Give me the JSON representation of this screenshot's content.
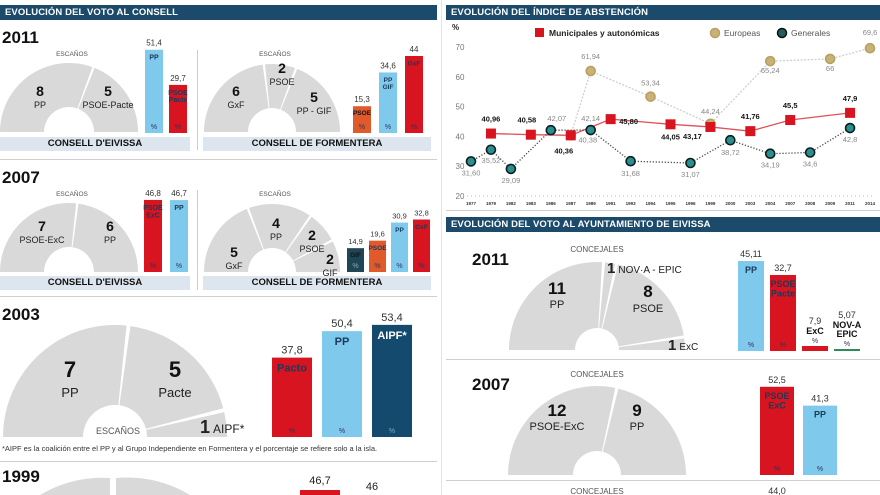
{
  "consell": {
    "title": "EVOLUCIÓN DEL VOTO AL CONSELL",
    "y2011": {
      "year": "2011",
      "eivissa": {
        "seats_label": "ESCAÑOS",
        "footer": "CONSELL D'EIVISSA",
        "seats": [
          {
            "n": "8",
            "party": "PP"
          },
          {
            "n": "5",
            "party": "PSOE-Pacte"
          }
        ],
        "bars": [
          {
            "value": "51,4",
            "num": 51.4,
            "label": "PP",
            "color": "#7fc9ec",
            "unit": "%"
          },
          {
            "value": "29,7",
            "num": 29.7,
            "label": "PSOE Pacte",
            "color": "#d7141f",
            "unit": "%"
          }
        ]
      },
      "formentera": {
        "seats_label": "ESCAÑOS",
        "footer": "CONSELL DE FORMENTERA",
        "seats": [
          {
            "n": "6",
            "party": "GxF"
          },
          {
            "n": "2",
            "party": "PSOE"
          },
          {
            "n": "5",
            "party": "PP - GIF"
          }
        ],
        "bars": [
          {
            "value": "15,3",
            "num": 15.3,
            "label": "PSOE",
            "color": "#e05a2b",
            "unit": "%"
          },
          {
            "value": "34,6",
            "num": 34.6,
            "label": "PP GIF",
            "color": "#7fc9ec",
            "unit": "%"
          },
          {
            "value": "44",
            "num": 44,
            "label": "GxF",
            "color": "#d7141f",
            "unit": "%"
          }
        ]
      }
    },
    "y2007": {
      "year": "2007",
      "eivissa": {
        "seats_label": "ESCAÑOS",
        "footer": "CONSELL D'EIVISSA",
        "seats": [
          {
            "n": "7",
            "party": "PSOE-ExC"
          },
          {
            "n": "6",
            "party": "PP"
          }
        ],
        "bars": [
          {
            "value": "46,8",
            "num": 46.8,
            "label": "PSOE ExC",
            "color": "#d7141f",
            "unit": "%"
          },
          {
            "value": "46,7",
            "num": 46.7,
            "label": "PP",
            "color": "#7fc9ec",
            "unit": "%"
          }
        ]
      },
      "formentera": {
        "seats_label": "ESCAÑOS",
        "footer": "CONSELL DE FORMENTERA",
        "seats": [
          {
            "n": "5",
            "party": "GxF"
          },
          {
            "n": "4",
            "party": "PP"
          },
          {
            "n": "2",
            "party": "PSOE"
          },
          {
            "n": "2",
            "party": "GIF"
          }
        ],
        "bars": [
          {
            "value": "14,9",
            "num": 14.9,
            "label": "GIF",
            "color": "#1f4654",
            "unit": "%"
          },
          {
            "value": "19,6",
            "num": 19.6,
            "label": "PSOE",
            "color": "#e05a2b",
            "unit": "%"
          },
          {
            "value": "30,9",
            "num": 30.9,
            "label": "PP",
            "color": "#7fc9ec",
            "unit": "%"
          },
          {
            "value": "32,8",
            "num": 32.8,
            "label": "GxF",
            "color": "#d7141f",
            "unit": "%"
          }
        ]
      }
    },
    "y2003": {
      "year": "2003",
      "seats_label": "ESCAÑOS",
      "seats": [
        {
          "n": "7",
          "party": "PP"
        },
        {
          "n": "5",
          "party": "Pacte"
        },
        {
          "n": "1",
          "party": "AIPF*"
        }
      ],
      "bars": [
        {
          "value": "37,8",
          "num": 37.8,
          "label": "Pacto",
          "color": "#d7141f",
          "unit": "%"
        },
        {
          "value": "50,4",
          "num": 50.4,
          "label": "PP",
          "color": "#7fc9ec",
          "unit": "%"
        },
        {
          "value": "53,4",
          "num": 53.4,
          "label": "AIPF*",
          "color": "#134a6e",
          "unit": "%"
        }
      ],
      "note": "*AIPF es la coalición entre el PP y al Grupo Independiente en Formentera y el porcentaje se refiere solo a la isla."
    },
    "y1999": {
      "year": "1999",
      "values": [
        "46,7",
        "46"
      ]
    }
  },
  "chart_data": {
    "type": "line",
    "title": "EVOLUCIÓN DEL ÍNDICE DE ABSTENCIÓN",
    "ylabel": "%",
    "ylim": [
      20,
      70
    ],
    "yticks": [
      "20",
      "30",
      "40",
      "50",
      "60",
      "70"
    ],
    "categories": [
      "1977",
      "1979",
      "1982",
      "1983",
      "1986",
      "1987",
      "1989",
      "1991",
      "1993",
      "1994",
      "1995",
      "1996",
      "1999",
      "2000",
      "2003",
      "2004",
      "2007",
      "2008",
      "2009",
      "2011",
      "2014"
    ],
    "legend": "top",
    "series": [
      {
        "name": "Municipales y autonómicas",
        "color": "#d7141f",
        "marker": "square",
        "points": [
          {
            "x": "1979",
            "y": 40.96,
            "label": "40,96"
          },
          {
            "x": "1983",
            "y": 40.58,
            "label": "40,58"
          },
          {
            "x": "1987",
            "y": 40.36,
            "label": "40,36"
          },
          {
            "x": "1991",
            "y": 45.8,
            "label": "45,80"
          },
          {
            "x": "1995",
            "y": 44.05,
            "label": "44,05"
          },
          {
            "x": "1999",
            "y": 43.17,
            "label": "43,17"
          },
          {
            "x": "2003",
            "y": 41.76,
            "label": "41,76"
          },
          {
            "x": "2007",
            "y": 45.5,
            "label": "45,5"
          },
          {
            "x": "2011",
            "y": 47.9,
            "label": "47,9"
          }
        ]
      },
      {
        "name": "Europeas",
        "color": "#c9b27a",
        "marker": "circle",
        "points": [
          {
            "x": "1987",
            "y": 40.38,
            "label": "40,38"
          },
          {
            "x": "1989",
            "y": 61.94,
            "label": "61,94"
          },
          {
            "x": "1994",
            "y": 53.34,
            "label": "53,34"
          },
          {
            "x": "1999",
            "y": 44.24,
            "label": "44,24"
          },
          {
            "x": "2004",
            "y": 65.24,
            "label": "65,24"
          },
          {
            "x": "2009",
            "y": 66,
            "label": "66"
          },
          {
            "x": "2014",
            "y": 69.6,
            "label": "69,6"
          }
        ]
      },
      {
        "name": "Generales",
        "color": "#1f5f5f",
        "marker": "circle",
        "points": [
          {
            "x": "1977",
            "y": 31.6,
            "label": "31,60"
          },
          {
            "x": "1979",
            "y": 35.52,
            "label": "35,52"
          },
          {
            "x": "1982",
            "y": 29.09,
            "label": "29,09"
          },
          {
            "x": "1986",
            "y": 42.07,
            "label": "42,07"
          },
          {
            "x": "1989",
            "y": 42.14,
            "label": "42,14"
          },
          {
            "x": "1993",
            "y": 31.68,
            "label": "31,68"
          },
          {
            "x": "1996",
            "y": 31.07,
            "label": "31,07"
          },
          {
            "x": "2000",
            "y": 38.72,
            "label": "38,72"
          },
          {
            "x": "2004",
            "y": 34.19,
            "label": "34,19"
          },
          {
            "x": "2008",
            "y": 34.6,
            "label": "34,6"
          },
          {
            "x": "2011",
            "y": 42.8,
            "label": "42,8"
          }
        ]
      }
    ]
  },
  "ayuntamiento": {
    "title": "EVOLUCIÓN DEL VOTO AL AYUNTAMIENTO DE EIVISSA",
    "y2011": {
      "year": "2011",
      "seats_label": "CONCEJALES",
      "seats": [
        {
          "n": "11",
          "party": "PP"
        },
        {
          "n": "1",
          "party": "NOV·A - EPIC"
        },
        {
          "n": "8",
          "party": "PSOE"
        },
        {
          "n": "1",
          "party": "ExC"
        }
      ],
      "bars": [
        {
          "value": "45,11",
          "num": 45.11,
          "label": "PP",
          "color": "#7fc9ec",
          "unit": "%"
        },
        {
          "value": "32,7",
          "num": 32.7,
          "label": "PSOE Pacte",
          "color": "#d7141f",
          "unit": "%"
        },
        {
          "value": "7,9",
          "num": 7.9,
          "label": "ExC",
          "color": "#d7141f",
          "unit": "%"
        },
        {
          "value": "5,07",
          "num": 5.07,
          "label": "NOV-A EPIC",
          "color": "#2e8b57",
          "unit": "%"
        }
      ]
    },
    "y2007": {
      "year": "2007",
      "seats_label": "CONCEJALES",
      "seats": [
        {
          "n": "12",
          "party": "PSOE-ExC"
        },
        {
          "n": "9",
          "party": "PP"
        }
      ],
      "bars": [
        {
          "value": "52,5",
          "num": 52.5,
          "label": "PSOE ExC",
          "color": "#d7141f",
          "unit": "%"
        },
        {
          "value": "41,3",
          "num": 41.3,
          "label": "PP",
          "color": "#7fc9ec",
          "unit": "%"
        }
      ]
    },
    "y2003": {
      "seats_label": "CONCEJALES",
      "value": "44,0"
    }
  }
}
